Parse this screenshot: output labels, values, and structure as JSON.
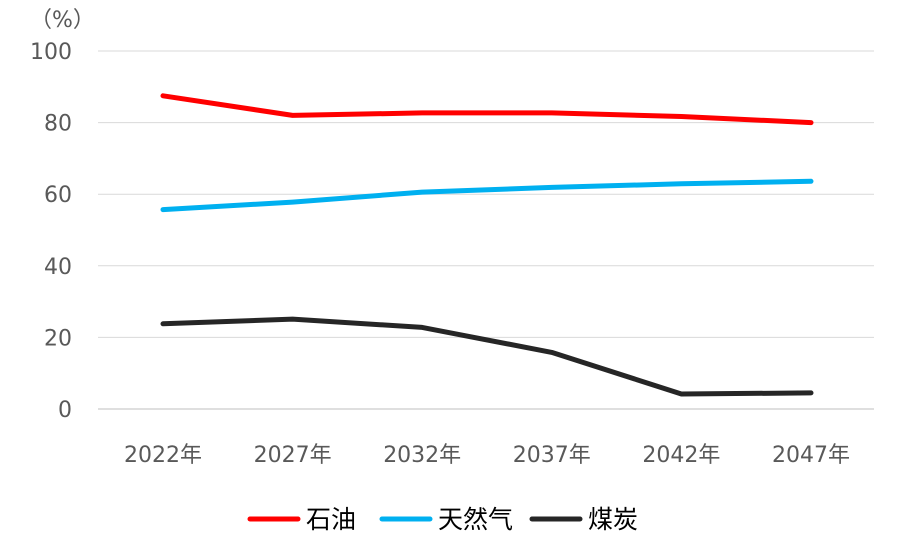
{
  "chart_data": {
    "type": "line",
    "unit_label": "（%）",
    "categories": [
      "2022年",
      "2027年",
      "2032年",
      "2037年",
      "2042年",
      "2047年"
    ],
    "y_ticks": [
      "0",
      "20",
      "40",
      "60",
      "80",
      "100"
    ],
    "ylim": [
      0,
      100
    ],
    "grid": true,
    "legend_position": "bottom",
    "series": [
      {
        "name": "石油",
        "color": "#ff0000",
        "values": [
          87.5,
          82,
          82.7,
          82.7,
          81.7,
          80
        ]
      },
      {
        "name": "天然气",
        "color": "#00b0f0",
        "values": [
          55.7,
          57.8,
          60.6,
          61.9,
          62.9,
          63.6
        ]
      },
      {
        "name": "煤炭",
        "color": "#262626",
        "values": [
          23.8,
          25.1,
          22.8,
          15.8,
          4.2,
          4.5
        ]
      }
    ]
  }
}
